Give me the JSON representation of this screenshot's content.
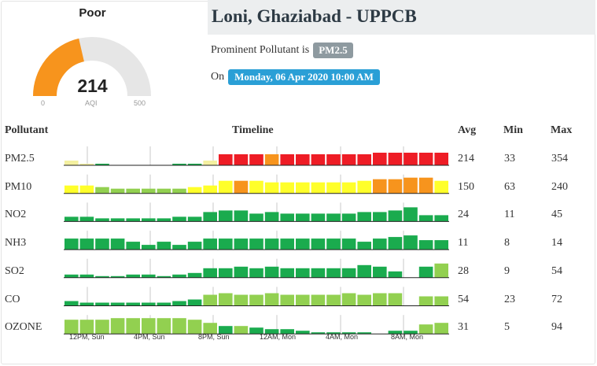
{
  "gauge": {
    "category": "Poor",
    "value": 214,
    "min_label": "0",
    "max_label": "500",
    "unit_label": "AQI",
    "min": 0,
    "max": 500,
    "fill_color": "#f7941d",
    "track_color": "#e6e6e6"
  },
  "station": {
    "title": "Loni, Ghaziabad - UPPCB",
    "prominent_prefix": "Prominent Pollutant is",
    "prominent_pollutant": "PM2.5",
    "date_prefix": "On",
    "date": "Monday, 06 Apr 2020 10:00 AM"
  },
  "table": {
    "headers": {
      "pollutant": "Pollutant",
      "timeline": "Timeline",
      "avg": "Avg",
      "min": "Min",
      "max": "Max"
    },
    "time_ticks": [
      "12PM, Sun",
      "4PM, Sun",
      "8PM, Sun",
      "12AM, Mon",
      "4AM, Mon",
      "8AM, Mon"
    ],
    "colors": {
      "dark_green": "#1aab4e",
      "light_green": "#92d050",
      "yellow": "#ffff2a",
      "orange": "#f7941d",
      "red": "#ee1c25",
      "pale_yellow": "#f4f0a0"
    },
    "rows": [
      {
        "name": "PM2.5",
        "avg": "214",
        "min": "33",
        "max": "354",
        "levels": [
          0.3,
          0.1,
          0.1,
          0,
          0,
          0,
          0,
          0.1,
          0.1,
          0.3,
          0.7,
          0.7,
          0.7,
          0.7,
          0.7,
          0.7,
          0.7,
          0.7,
          0.7,
          0.7,
          0.8,
          0.8,
          0.8,
          0.8,
          0.8
        ],
        "colors": [
          "pale_yellow",
          "pale_yellow",
          "dark_green",
          "none",
          "none",
          "none",
          "none",
          "dark_green",
          "dark_green",
          "pale_yellow",
          "red",
          "red",
          "red",
          "orange",
          "red",
          "red",
          "red",
          "red",
          "red",
          "red",
          "red",
          "red",
          "red",
          "red",
          "red"
        ]
      },
      {
        "name": "PM10",
        "avg": "150",
        "min": "63",
        "max": "240",
        "levels": [
          0.5,
          0.5,
          0.4,
          0.3,
          0.3,
          0.3,
          0.3,
          0.3,
          0.4,
          0.5,
          0.8,
          0.8,
          0.8,
          0.7,
          0.7,
          0.7,
          0.7,
          0.7,
          0.7,
          0.8,
          0.9,
          0.9,
          1.0,
          1.0,
          0.8
        ],
        "colors": [
          "yellow",
          "yellow",
          "light_green",
          "light_green",
          "light_green",
          "light_green",
          "light_green",
          "light_green",
          "yellow",
          "yellow",
          "yellow",
          "orange",
          "yellow",
          "yellow",
          "yellow",
          "yellow",
          "yellow",
          "yellow",
          "yellow",
          "yellow",
          "orange",
          "orange",
          "orange",
          "orange",
          "yellow"
        ]
      },
      {
        "name": "NO2",
        "avg": "24",
        "min": "11",
        "max": "45",
        "levels": [
          0.3,
          0.3,
          0.2,
          0.2,
          0.2,
          0.2,
          0.2,
          0.3,
          0.3,
          0.6,
          0.7,
          0.7,
          0.5,
          0.6,
          0.5,
          0.5,
          0.5,
          0.5,
          0.5,
          0.6,
          0.6,
          0.7,
          0.9,
          0.4,
          0.4
        ],
        "colors": [
          "dark_green",
          "dark_green",
          "dark_green",
          "dark_green",
          "dark_green",
          "dark_green",
          "dark_green",
          "dark_green",
          "dark_green",
          "dark_green",
          "dark_green",
          "dark_green",
          "dark_green",
          "dark_green",
          "dark_green",
          "dark_green",
          "dark_green",
          "dark_green",
          "dark_green",
          "dark_green",
          "dark_green",
          "dark_green",
          "dark_green",
          "dark_green",
          "dark_green"
        ]
      },
      {
        "name": "NH3",
        "avg": "11",
        "min": "8",
        "max": "14",
        "levels": [
          0.7,
          0.7,
          0.7,
          0.7,
          0.5,
          0.3,
          0.5,
          0.3,
          0.5,
          0.7,
          0.7,
          0.7,
          0.7,
          0.7,
          0.7,
          0.7,
          0.7,
          0.7,
          0.7,
          0.5,
          0.7,
          0.8,
          0.9,
          0.6,
          0.6
        ],
        "colors": [
          "dark_green",
          "dark_green",
          "dark_green",
          "dark_green",
          "dark_green",
          "dark_green",
          "dark_green",
          "dark_green",
          "dark_green",
          "dark_green",
          "dark_green",
          "dark_green",
          "dark_green",
          "dark_green",
          "dark_green",
          "dark_green",
          "dark_green",
          "dark_green",
          "dark_green",
          "dark_green",
          "dark_green",
          "dark_green",
          "dark_green",
          "dark_green",
          "dark_green"
        ]
      },
      {
        "name": "SO2",
        "avg": "28",
        "min": "9",
        "max": "54",
        "levels": [
          0.2,
          0.2,
          0.1,
          0.1,
          0.2,
          0.2,
          0.1,
          0.2,
          0.3,
          0.6,
          0.6,
          0.7,
          0.6,
          0.7,
          0.6,
          0.6,
          0.6,
          0.6,
          0.6,
          0.8,
          0.7,
          0.4,
          0,
          0.7,
          0.9
        ],
        "colors": [
          "dark_green",
          "dark_green",
          "dark_green",
          "dark_green",
          "dark_green",
          "dark_green",
          "dark_green",
          "dark_green",
          "dark_green",
          "dark_green",
          "dark_green",
          "dark_green",
          "dark_green",
          "dark_green",
          "dark_green",
          "dark_green",
          "dark_green",
          "dark_green",
          "dark_green",
          "dark_green",
          "dark_green",
          "dark_green",
          "none",
          "dark_green",
          "light_green"
        ]
      },
      {
        "name": "CO",
        "avg": "54",
        "min": "23",
        "max": "72",
        "levels": [
          0.3,
          0.2,
          0.2,
          0.2,
          0.2,
          0.2,
          0.2,
          0.3,
          0.4,
          0.7,
          0.8,
          0.7,
          0.7,
          0.8,
          0.7,
          0.7,
          0.7,
          0.7,
          0.8,
          0.7,
          0.8,
          0.8,
          0,
          0.6,
          0.6
        ],
        "colors": [
          "dark_green",
          "dark_green",
          "dark_green",
          "dark_green",
          "dark_green",
          "dark_green",
          "dark_green",
          "dark_green",
          "dark_green",
          "light_green",
          "light_green",
          "light_green",
          "light_green",
          "light_green",
          "light_green",
          "light_green",
          "light_green",
          "light_green",
          "light_green",
          "light_green",
          "light_green",
          "light_green",
          "none",
          "light_green",
          "light_green"
        ]
      },
      {
        "name": "OZONE",
        "avg": "31",
        "min": "5",
        "max": "94",
        "levels": [
          0.9,
          0.9,
          0.9,
          1.0,
          1.0,
          1.0,
          1.0,
          1.0,
          0.9,
          0.7,
          0.5,
          0.5,
          0.4,
          0.3,
          0.3,
          0.2,
          0.1,
          0.1,
          0.1,
          0.1,
          0,
          0.2,
          0.2,
          0.6,
          0.7
        ],
        "colors": [
          "light_green",
          "light_green",
          "light_green",
          "light_green",
          "light_green",
          "light_green",
          "light_green",
          "light_green",
          "light_green",
          "light_green",
          "dark_green",
          "light_green",
          "dark_green",
          "dark_green",
          "dark_green",
          "dark_green",
          "dark_green",
          "dark_green",
          "dark_green",
          "dark_green",
          "none",
          "dark_green",
          "dark_green",
          "light_green",
          "light_green"
        ]
      }
    ]
  }
}
